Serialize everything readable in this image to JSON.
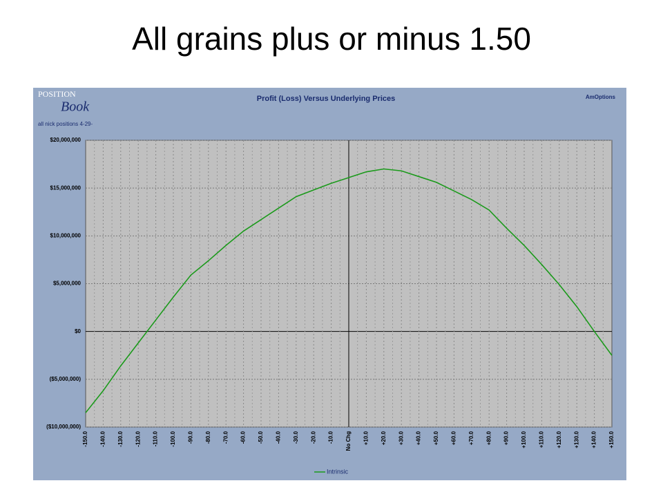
{
  "title": "All grains plus or minus 1.50",
  "chart_data": {
    "type": "line",
    "title": "Profit (Loss) Versus Underlying Prices",
    "subtitle": "all nick positions 4-29-",
    "annotations": [
      "POSITION",
      "Book",
      "AmOptions"
    ],
    "categories": [
      "-150.0",
      "-140.0",
      "-130.0",
      "-120.0",
      "-110.0",
      "-100.0",
      "-90.0",
      "-80.0",
      "-70.0",
      "-60.0",
      "-50.0",
      "-40.0",
      "-30.0",
      "-20.0",
      "-10.0",
      "No Chg",
      "+10.0",
      "+20.0",
      "+30.0",
      "+40.0",
      "+50.0",
      "+60.0",
      "+70.0",
      "+80.0",
      "+90.0",
      "+100.0",
      "+110.0",
      "+120.0",
      "+130.0",
      "+140.0",
      "+150.0"
    ],
    "series": [
      {
        "name": "Intrinsic",
        "color": "#1a9a1a",
        "values": [
          -8500000,
          -6200000,
          -3600000,
          -1200000,
          1200000,
          3600000,
          5900000,
          7400000,
          9000000,
          10500000,
          11700000,
          12900000,
          14100000,
          14800000,
          15500000,
          16100000,
          16700000,
          17000000,
          16800000,
          16200000,
          15600000,
          14700000,
          13800000,
          12700000,
          10800000,
          9000000,
          7000000,
          4900000,
          2600000,
          0,
          -2500000
        ]
      }
    ],
    "ylim": [
      -10000000,
      20000000
    ],
    "yticks": [
      {
        "value": -10000000,
        "label": "($10,000,000)"
      },
      {
        "value": -5000000,
        "label": "($5,000,000)"
      },
      {
        "value": 0,
        "label": "$0"
      },
      {
        "value": 5000000,
        "label": "$5,000,000"
      },
      {
        "value": 10000000,
        "label": "$10,000,000"
      },
      {
        "value": 15000000,
        "label": "$15,000,000"
      },
      {
        "value": 20000000,
        "label": "$20,000,000"
      }
    ],
    "grid": true,
    "legend": "bottom"
  }
}
